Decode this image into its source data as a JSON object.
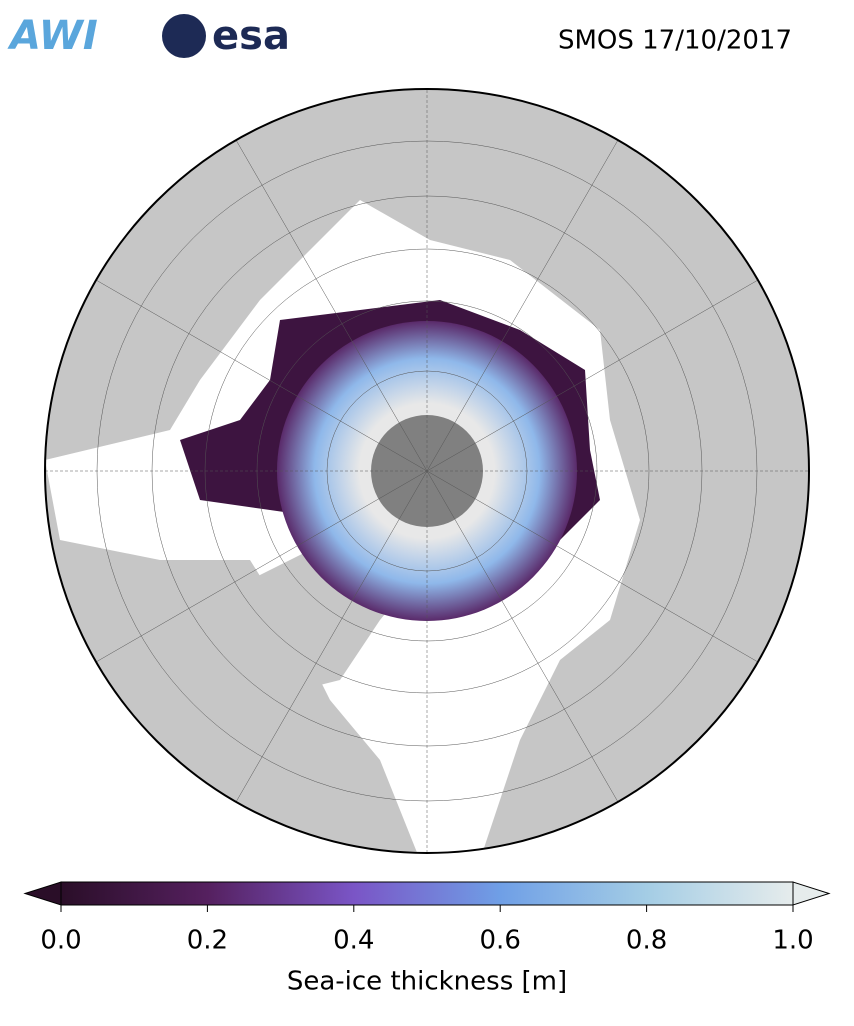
{
  "header": {
    "logos": [
      "AWI",
      "esa"
    ],
    "title": "SMOS 17/10/2017"
  },
  "colorbar": {
    "label": "Sea-ice thickness [m]",
    "lim": [
      0,
      1
    ],
    "ticks": [
      {
        "value": 0,
        "label": "0.0"
      },
      {
        "value": 0.2,
        "label": "0.2"
      },
      {
        "value": 0.4,
        "label": "0.4"
      },
      {
        "value": 0.6,
        "label": "0.6"
      },
      {
        "value": 0.8,
        "label": "0.8"
      },
      {
        "value": 1,
        "label": "1.0"
      }
    ],
    "colors": [
      "#2a0e28",
      "#55205f",
      "#7a55c6",
      "#6f9fe6",
      "#a4cde5",
      "#e6ecec"
    ]
  }
}
